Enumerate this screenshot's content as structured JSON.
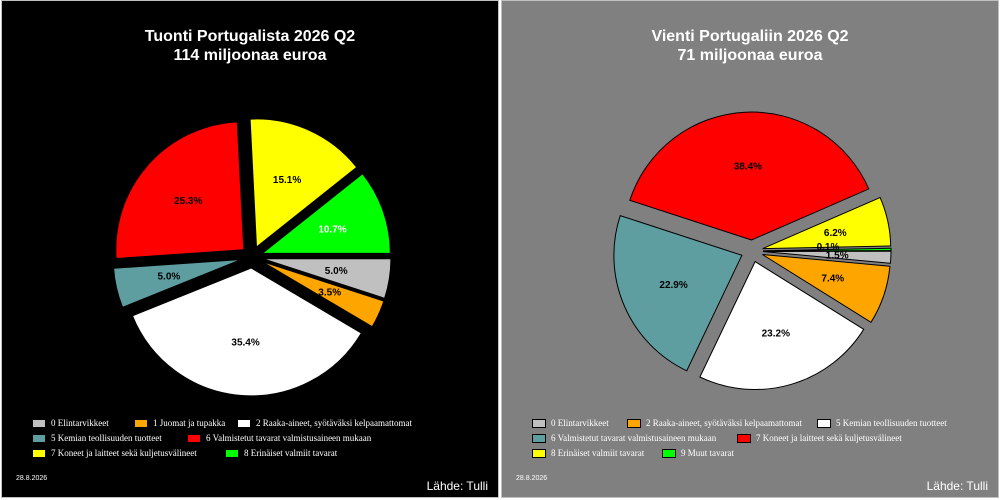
{
  "chart_data": [
    {
      "type": "pie",
      "title": "Tuonti Portugalista  2026 Q2",
      "subtitle": "114 miljoonaa euroa",
      "background": "#000000",
      "legend_text_color": "#ffffff",
      "slices": [
        {
          "label": "0 Elintarvikkeet",
          "value": 5.0,
          "display": "5.0%",
          "color": "#c0c0c0"
        },
        {
          "label": "1 Juomat ja tupakka",
          "value": 3.5,
          "display": "3.5%",
          "color": "#ffa500"
        },
        {
          "label": "2 Raaka-aineet, syötäväksi kelpaamattomat",
          "value": 0.0,
          "display": "",
          "color": "#ffffff"
        },
        {
          "label": "",
          "value": 35.4,
          "display": "35.4%",
          "color": "#ffffff"
        },
        {
          "label": "5 Kemian teollisuuden tuotteet",
          "value": 5.0,
          "display": "5.0%",
          "color": "#5f9ea0"
        },
        {
          "label": "6 Valmistetut tavarat valmistusaineen mukaan",
          "value": 25.3,
          "display": "25.3%",
          "color": "#ff0000"
        },
        {
          "label": "7 Koneet ja laitteet sekä kuljetusvälineet",
          "value": 15.1,
          "display": "15.1%",
          "color": "#ffff00"
        },
        {
          "label": "8 Erinäiset valmiit tavarat",
          "value": 10.7,
          "display": "10.7%",
          "color": "#00ff00"
        }
      ],
      "legend": [
        [
          "0 Elintarvikkeet",
          "1 Juomat ja tupakka",
          "2 Raaka-aineet, syötäväksi kelpaamattomat"
        ],
        [
          "5 Kemian teollisuuden tuotteet",
          "6 Valmistetut tavarat valmistusaineen mukaan"
        ],
        [
          "7 Koneet ja laitteet sekä kuljetusvälineet",
          "8 Erinäiset valmiit tavarat"
        ]
      ],
      "date": "28.8.2026",
      "source": "Lähde: Tulli"
    },
    {
      "type": "pie",
      "title": "Vienti Portugaliin 2026 Q2",
      "subtitle": "71 miljoonaa euroa",
      "background": "#808080",
      "legend_text_color": "#ffffff",
      "slices": [
        {
          "label": "9 Muut tavarat",
          "value": 0.3,
          "display": "",
          "color": "#00ff00"
        },
        {
          "label": "0 Elintarvikkeet",
          "value": 1.5,
          "display": "1.5%",
          "color": "#c0c0c0"
        },
        {
          "label": "2 Raaka-aineet, syötäväksi kelpaamattomat",
          "value": 7.4,
          "display": "7.4%",
          "color": "#ffa500"
        },
        {
          "label": "5 Kemian teollisuuden tuotteet",
          "value": 23.2,
          "display": "23.2%",
          "color": "#ffffff"
        },
        {
          "label": "6 Valmistetut tavarat valmistusaineen mukaan",
          "value": 22.9,
          "display": "22.9%",
          "color": "#5f9ea0"
        },
        {
          "label": "7 Koneet ja laitteet sekä kuljetusvälineet",
          "value": 38.4,
          "display": "38.4%",
          "color": "#ff0000"
        },
        {
          "label": "8 Erinäiset valmiit tavarat",
          "value": 6.2,
          "display": "6.2%",
          "color": "#ffff00"
        }
      ],
      "overlap_label": "0.1%",
      "legend": [
        [
          "0 Elintarvikkeet",
          "2 Raaka-aineet, syötäväksi kelpaamattomat",
          "5 Kemian teollisuuden tuotteet"
        ],
        [
          "6 Valmistetut tavarat valmistusaineen mukaan",
          "7 Koneet ja laitteet sekä kuljetusvälineet"
        ],
        [
          "8 Erinäiset valmiit tavarat",
          "9 Muut tavarat"
        ]
      ],
      "date": "28.8.2026",
      "source": "Lähde: Tulli"
    }
  ]
}
